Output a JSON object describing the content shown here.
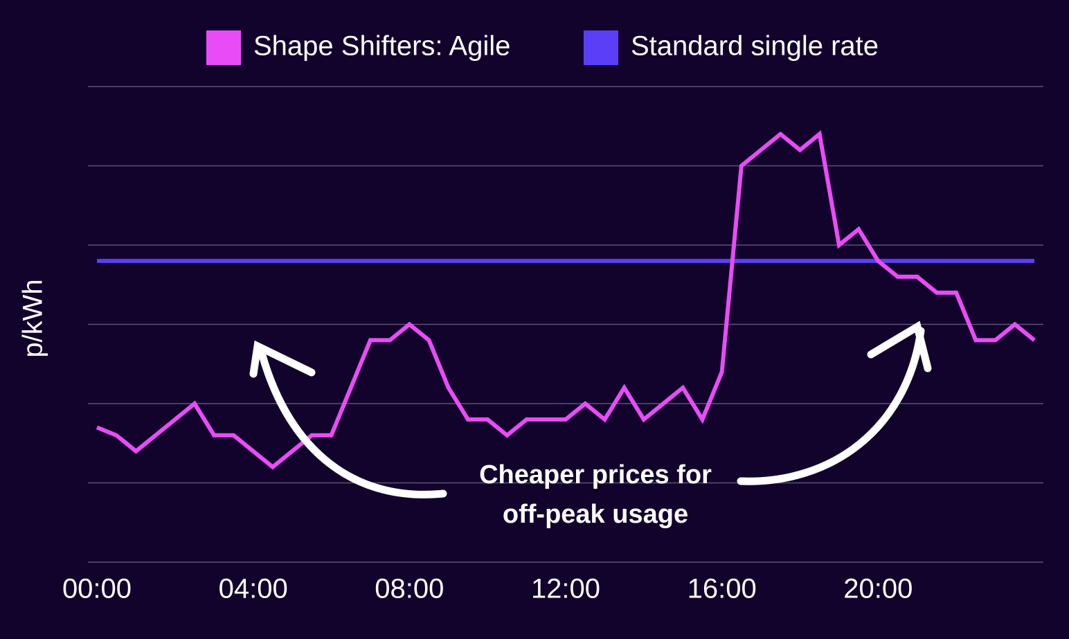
{
  "chart_data": {
    "type": "line",
    "x": [
      0,
      0.5,
      1,
      1.5,
      2,
      2.5,
      3,
      3.5,
      4,
      4.5,
      5,
      5.5,
      6,
      6.5,
      7,
      7.5,
      8,
      8.5,
      9,
      9.5,
      10,
      10.5,
      11,
      11.5,
      12,
      12.5,
      13,
      13.5,
      14,
      14.5,
      15,
      15.5,
      16,
      16.5,
      17,
      17.5,
      18,
      18.5,
      19,
      19.5,
      20,
      20.5,
      21,
      21.5,
      22,
      22.5,
      23,
      23.5,
      24
    ],
    "series": [
      {
        "name": "Shape Shifters: Agile",
        "color": "#e94cf6",
        "values": [
          1.7,
          1.6,
          1.4,
          1.6,
          1.8,
          2.0,
          1.6,
          1.6,
          1.4,
          1.2,
          1.4,
          1.6,
          1.6,
          2.2,
          2.8,
          2.8,
          3.0,
          2.8,
          2.2,
          1.8,
          1.8,
          1.6,
          1.8,
          1.8,
          1.8,
          2.0,
          1.8,
          2.2,
          1.8,
          2.0,
          2.2,
          1.8,
          2.4,
          5.0,
          5.2,
          5.4,
          5.2,
          5.4,
          4.0,
          4.2,
          3.8,
          3.6,
          3.6,
          3.4,
          3.4,
          2.8,
          2.8,
          3.0,
          2.8
        ]
      },
      {
        "name": "Standard single rate",
        "color": "#5b3ff6",
        "values": [
          3.8,
          3.8,
          3.8,
          3.8,
          3.8,
          3.8,
          3.8,
          3.8,
          3.8,
          3.8,
          3.8,
          3.8,
          3.8,
          3.8,
          3.8,
          3.8,
          3.8,
          3.8,
          3.8,
          3.8,
          3.8,
          3.8,
          3.8,
          3.8,
          3.8,
          3.8,
          3.8,
          3.8,
          3.8,
          3.8,
          3.8,
          3.8,
          3.8,
          3.8,
          3.8,
          3.8,
          3.8,
          3.8,
          3.8,
          3.8,
          3.8,
          3.8,
          3.8,
          3.8,
          3.8,
          3.8,
          3.8,
          3.8,
          3.8
        ]
      }
    ],
    "y_label": "p/kWh",
    "xlim": [
      0,
      24
    ],
    "xticks": [
      {
        "value": 0,
        "label": "00:00"
      },
      {
        "value": 4,
        "label": "04:00"
      },
      {
        "value": 8,
        "label": "08:00"
      },
      {
        "value": 12,
        "label": "12:00"
      },
      {
        "value": 16,
        "label": "16:00"
      },
      {
        "value": 20,
        "label": "20:00"
      }
    ],
    "ylim": [
      0,
      6
    ],
    "yticks": [
      0,
      1,
      2,
      3,
      4,
      5,
      6
    ],
    "ytick_labels": false,
    "grid": true,
    "legend": "top",
    "annotation": [
      "Cheaper prices for",
      "off-peak usage"
    ]
  }
}
